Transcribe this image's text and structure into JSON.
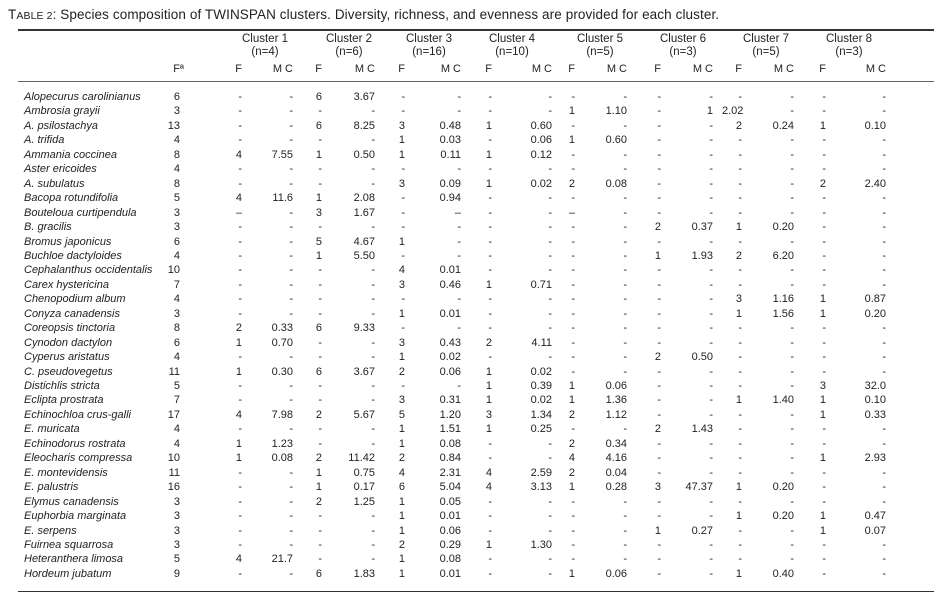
{
  "caption": {
    "table_label_first": "T",
    "table_label_rest": "able 2",
    "text": ": Species composition of TWINSPAN clusters.  Diversity, richness, and evenness are provided for each cluster."
  },
  "header": {
    "fa_label": "Fª",
    "f_label": "F",
    "mc_label": "M C",
    "clusters": [
      {
        "name": "Cluster 1",
        "n": "(n=4)"
      },
      {
        "name": "Cluster 2",
        "n": "(n=6)"
      },
      {
        "name": "Cluster 3",
        "n": "(n=16)"
      },
      {
        "name": "Cluster 4",
        "n": "(n=10)"
      },
      {
        "name": "Cluster 5",
        "n": "(n=5)"
      },
      {
        "name": "Cluster 6",
        "n": "(n=3)"
      },
      {
        "name": "Cluster 7",
        "n": "(n=5)"
      },
      {
        "name": "Cluster 8",
        "n": "(n=3)"
      }
    ]
  },
  "rows": [
    {
      "species": "Alopecurus carolinianus",
      "fa": "6",
      "cells": [
        "-",
        "-",
        "6",
        "3.67",
        "-",
        "-",
        "-",
        "-",
        "-",
        "-",
        "-",
        "-",
        "-",
        "-",
        "-",
        "-"
      ]
    },
    {
      "species": "Ambrosia grayii",
      "fa": "3",
      "cells": [
        "-",
        "-",
        "-",
        "-",
        "-",
        "-",
        "-",
        "-",
        "1",
        "1.10",
        "-",
        "1",
        "2.02",
        "-",
        "-",
        "-"
      ]
    },
    {
      "species": "A. psilostachya",
      "fa": "13",
      "cells": [
        "-",
        "-",
        "6",
        "8.25",
        "3",
        "0.48",
        "1",
        "0.60",
        "-",
        "-",
        "-",
        "-",
        "2",
        "0.24",
        "1",
        "0.10"
      ]
    },
    {
      "species": "A.  trifida",
      "fa": "4",
      "cells": [
        "-",
        "-",
        "-",
        "-",
        "1",
        "0.03",
        "-",
        "0.06",
        "1",
        "0.60",
        "-",
        "-",
        "-",
        "-",
        "-",
        "-"
      ]
    },
    {
      "species": "Ammania coccinea",
      "fa": "8",
      "cells": [
        "4",
        "7.55",
        "1",
        "0.50",
        "1",
        "0.11",
        "1",
        "0.12",
        "-",
        "-",
        "-",
        "-",
        "-",
        "-",
        "-",
        "-"
      ]
    },
    {
      "species": "Aster ericoides",
      "fa": "4",
      "cells": [
        "-",
        "-",
        "-",
        "-",
        "-",
        "-",
        "-",
        "-",
        "-",
        "-",
        "-",
        "-",
        "-",
        "-",
        "-",
        "-"
      ]
    },
    {
      "species": "A. subulatus",
      "fa": "8",
      "cells": [
        "-",
        "-",
        "-",
        "-",
        "3",
        "0.09",
        "1",
        "0.02",
        "2",
        "0.08",
        "-",
        "-",
        "-",
        "-",
        "2",
        "2.40"
      ]
    },
    {
      "species": "Bacopa rotundifolia",
      "fa": "5",
      "cells": [
        "4",
        "11.6",
        "1",
        "2.08",
        "-",
        "0.94",
        "-",
        "-",
        "-",
        "-",
        "-",
        "-",
        "-",
        "-",
        "-",
        "-"
      ]
    },
    {
      "species": "Bouteloua curtipendula",
      "fa": "3",
      "cells": [
        "–",
        "-",
        "3",
        "1.67",
        "-",
        "–",
        "-",
        "-",
        "–",
        "-",
        "-",
        "-",
        "-",
        "-",
        "-",
        "-"
      ]
    },
    {
      "species": "B. gracilis",
      "fa": "3",
      "cells": [
        "-",
        "-",
        "-",
        "-",
        "-",
        "-",
        "-",
        "-",
        "-",
        "-",
        "2",
        "0.37",
        "1",
        "0.20",
        "-",
        "-"
      ]
    },
    {
      "species": "Bromus japonicus",
      "fa": "6",
      "cells": [
        "-",
        "-",
        "5",
        "4.67",
        "1",
        "-",
        "-",
        "-",
        "-",
        "-",
        "-",
        "-",
        "-",
        "-",
        "-",
        "-"
      ]
    },
    {
      "species": "Buchloe dactyloides",
      "fa": "4",
      "cells": [
        "-",
        "-",
        "1",
        "5.50",
        "-",
        "-",
        "-",
        "-",
        "-",
        "-",
        "1",
        "1.93",
        "2",
        "6.20",
        "-",
        "-"
      ]
    },
    {
      "species": "Cephalanthus occidentalis",
      "fa": "10",
      "cells": [
        "-",
        "-",
        "-",
        "-",
        "4",
        "0.01",
        "-",
        "-",
        "-",
        "-",
        "-",
        "-",
        "-",
        "-",
        "-",
        "-"
      ]
    },
    {
      "species": "Carex hystericina",
      "fa": "7",
      "cells": [
        "-",
        "-",
        "-",
        "-",
        "3",
        "0.46",
        "1",
        "0.71",
        "-",
        "-",
        "-",
        "-",
        "-",
        "-",
        "-",
        "-"
      ]
    },
    {
      "species": "Chenopodium album",
      "fa": "4",
      "cells": [
        "-",
        "-",
        "-",
        "-",
        "-",
        "-",
        "-",
        "-",
        "-",
        "-",
        "-",
        "-",
        "3",
        "1.16",
        "1",
        "0.87"
      ]
    },
    {
      "species": "Conyza canadensis",
      "fa": "3",
      "cells": [
        "-",
        "-",
        "-",
        "-",
        "1",
        "0.01",
        "-",
        "-",
        "-",
        "-",
        "-",
        "-",
        "1",
        "1.56",
        "1",
        "0.20"
      ]
    },
    {
      "species": "Coreopsis tinctoria",
      "fa": "8",
      "cells": [
        "2",
        "0.33",
        "6",
        "9.33",
        "-",
        "-",
        "-",
        "-",
        "-",
        "-",
        "-",
        "-",
        "-",
        "-",
        "-",
        "-"
      ]
    },
    {
      "species": "Cynodon dactylon",
      "fa": "6",
      "cells": [
        "1",
        "0.70",
        "-",
        "-",
        "3",
        "0.43",
        "2",
        "4.11",
        "-",
        "-",
        "-",
        "-",
        "-",
        "-",
        "-",
        "-"
      ]
    },
    {
      "species": "Cyperus aristatus",
      "fa": "4",
      "cells": [
        "-",
        "-",
        "-",
        "-",
        "1",
        "0.02",
        "-",
        "-",
        "-",
        "-",
        "2",
        "0.50",
        "-",
        "-",
        "-",
        "-"
      ]
    },
    {
      "species": "C. pseudovegetus",
      "fa": "11",
      "cells": [
        "1",
        "0.30",
        "6",
        "3.67",
        "2",
        "0.06",
        "1",
        "0.02",
        "-",
        "-",
        "-",
        "-",
        "-",
        "-",
        "-",
        "-"
      ]
    },
    {
      "species": "Distichlis stricta",
      "fa": "5",
      "cells": [
        "-",
        "-",
        "-",
        "-",
        "-",
        "-",
        "1",
        "0.39",
        "1",
        "0.06",
        "-",
        "-",
        "-",
        "-",
        "3",
        "32.0"
      ]
    },
    {
      "species": "Eclipta prostrata",
      "fa": "7",
      "cells": [
        "-",
        "-",
        "-",
        "-",
        "3",
        "0.31",
        "1",
        "0.02",
        "1",
        "1.36",
        "-",
        "-",
        "1",
        "1.40",
        "1",
        "0.10"
      ]
    },
    {
      "species": "Echinochloa crus-galli",
      "fa": "17",
      "cells": [
        "4",
        "7.98",
        "2",
        "5.67",
        "5",
        "1.20",
        "3",
        "1.34",
        "2",
        "1.12",
        "-",
        "-",
        "-",
        "-",
        "1",
        "0.33"
      ]
    },
    {
      "species": "E. muricata",
      "fa": "4",
      "cells": [
        "-",
        "-",
        "-",
        "-",
        "1",
        "1.51",
        "1",
        "0.25",
        "-",
        "-",
        "2",
        "1.43",
        "-",
        "-",
        "-",
        "-"
      ]
    },
    {
      "species": "Echinodorus rostrata",
      "fa": "4",
      "cells": [
        "1",
        "1.23",
        "-",
        "-",
        "1",
        "0.08",
        "-",
        "-",
        "2",
        "0.34",
        "-",
        "-",
        "-",
        "-",
        "-",
        "-"
      ]
    },
    {
      "species": "Eleocharis compressa",
      "fa": "10",
      "cells": [
        "1",
        "0.08",
        "2",
        "11.42",
        "2",
        "0.84",
        "-",
        "-",
        "4",
        "4.16",
        "-",
        "-",
        "-",
        "-",
        "1",
        "2.93"
      ]
    },
    {
      "species": "E. montevidensis",
      "fa": "11",
      "cells": [
        "-",
        "-",
        "1",
        "0.75",
        "4",
        "2.31",
        "4",
        "2.59",
        "2",
        "0.04",
        "-",
        "-",
        "-",
        "-",
        "-",
        "-"
      ]
    },
    {
      "species": "E. palustris",
      "fa": "16",
      "cells": [
        "-",
        "-",
        "1",
        "0.17",
        "6",
        "5.04",
        "4",
        "3.13",
        "1",
        "0.28",
        "3",
        "47.37",
        "1",
        "0.20",
        "-",
        "-"
      ]
    },
    {
      "species": "Elymus canadensis",
      "fa": "3",
      "cells": [
        "-",
        "-",
        "2",
        "1.25",
        "1",
        "0.05",
        "-",
        "-",
        "-",
        "-",
        "-",
        "-",
        "-",
        "-",
        "-",
        "-"
      ]
    },
    {
      "species": "Euphorbia marginata",
      "fa": "3",
      "cells": [
        "-",
        "-",
        "-",
        "-",
        "1",
        "0.01",
        "-",
        "-",
        "-",
        "-",
        "-",
        "-",
        "1",
        "0.20",
        "1",
        "0.47"
      ]
    },
    {
      "species": "E. serpens",
      "fa": "3",
      "cells": [
        "-",
        "-",
        "-",
        "-",
        "1",
        "0.06",
        "-",
        "-",
        "-",
        "-",
        "1",
        "0.27",
        "-",
        "-",
        "1",
        "0.07"
      ]
    },
    {
      "species": "Fuirnea squarrosa",
      "fa": "3",
      "cells": [
        "-",
        "-",
        "-",
        "-",
        "2",
        "0.29",
        "1",
        "1.30",
        "-",
        "-",
        "-",
        "-",
        "-",
        "-",
        "-",
        "-"
      ]
    },
    {
      "species": "Heteranthera limosa",
      "fa": "5",
      "cells": [
        "4",
        "21.7",
        "-",
        "-",
        "1",
        "0.08",
        "-",
        "-",
        "-",
        "-",
        "-",
        "-",
        "-",
        "-",
        "-",
        "-"
      ]
    },
    {
      "species": "Hordeum jubatum",
      "fa": "9",
      "cells": [
        "-",
        "-",
        "6",
        "1.83",
        "1",
        "0.01",
        "-",
        "-",
        "1",
        "0.06",
        "-",
        "-",
        "1",
        "0.40",
        "-",
        "-"
      ]
    }
  ]
}
